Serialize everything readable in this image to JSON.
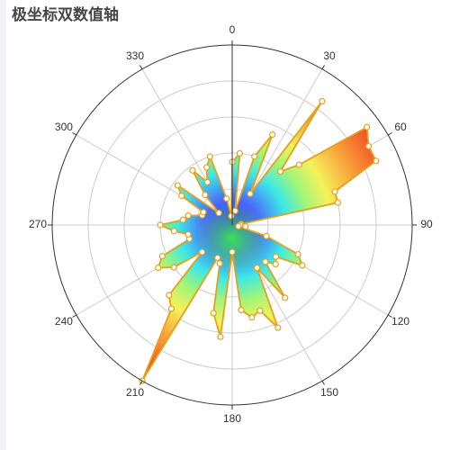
{
  "chart_data": {
    "type": "polar-area",
    "title": "极坐标双数值轴",
    "angle_axis": {
      "min": 0,
      "max": 360,
      "start": 0,
      "clockwise": true,
      "ticks": [
        0,
        30,
        60,
        90,
        120,
        150,
        180,
        210,
        240,
        270,
        300,
        330
      ],
      "tick_labels": [
        "0",
        "30",
        "60",
        "90",
        "120",
        "150",
        "180",
        "210",
        "240",
        "270",
        "300",
        "330"
      ]
    },
    "radius_axis": {
      "min": 0,
      "max": 2,
      "split_lines": [
        0.4,
        0.8,
        1.2,
        1.6,
        2.0
      ]
    },
    "series": [
      {
        "data": [
          [
            0,
            0.7
          ],
          [
            6,
            0.8
          ],
          [
            12,
            0.16
          ],
          [
            18,
            0.8
          ],
          [
            24,
            1.1
          ],
          [
            30,
            0.4
          ],
          [
            36,
            1.7
          ],
          [
            42,
            0.8
          ],
          [
            48,
            1.0
          ],
          [
            54,
            1.85
          ],
          [
            60,
            1.75
          ],
          [
            66,
            1.75
          ],
          [
            72,
            1.2
          ],
          [
            78,
            1.2
          ],
          [
            84,
            0.1
          ],
          [
            90,
            0.09
          ],
          [
            96,
            0.15
          ],
          [
            102,
            0.07
          ],
          [
            108,
            0.4
          ],
          [
            114,
            0.8
          ],
          [
            120,
            0.9
          ],
          [
            126,
            0.6
          ],
          [
            132,
            0.65
          ],
          [
            138,
            0.55
          ],
          [
            144,
            1.0
          ],
          [
            150,
            0.55
          ],
          [
            156,
            1.25
          ],
          [
            162,
            1.0
          ],
          [
            168,
            1.05
          ],
          [
            174,
            0.95
          ],
          [
            180,
            0.3
          ],
          [
            186,
            1.25
          ],
          [
            192,
            1.0
          ],
          [
            198,
            0.45
          ],
          [
            204,
            0.4
          ],
          [
            210,
            2.0
          ],
          [
            216,
            1.15
          ],
          [
            222,
            1.05
          ],
          [
            228,
            0.45
          ],
          [
            234,
            0.8
          ],
          [
            240,
            0.95
          ],
          [
            246,
            0.85
          ],
          [
            252,
            0.5
          ],
          [
            258,
            0.5
          ],
          [
            264,
            0.65
          ],
          [
            270,
            0.8
          ],
          [
            276,
            0.55
          ],
          [
            282,
            0.5
          ],
          [
            288,
            0.35
          ],
          [
            294,
            0.35
          ],
          [
            300,
            0.65
          ],
          [
            306,
            0.75
          ],
          [
            312,
            0.2
          ],
          [
            318,
            0.45
          ],
          [
            324,
            0.75
          ],
          [
            330,
            0.55
          ],
          [
            336,
            0.7
          ],
          [
            342,
            0.8
          ],
          [
            348,
            0.3
          ],
          [
            354,
            0.1
          ]
        ]
      }
    ],
    "visual_map": {
      "range": [
        0,
        2
      ],
      "colors": [
        "#313695",
        "#4575b4",
        "#74add1",
        "#abd9e9",
        "#e0f3f8",
        "#ffffbf",
        "#fee090",
        "#fdae61",
        "#f46d43",
        "#d73027",
        "#a50026"
      ]
    },
    "colors": {
      "line": "#e5a01c",
      "axis": "#333333",
      "split": "#cccccc",
      "point_fill": "#ffffff"
    },
    "grid": true
  }
}
